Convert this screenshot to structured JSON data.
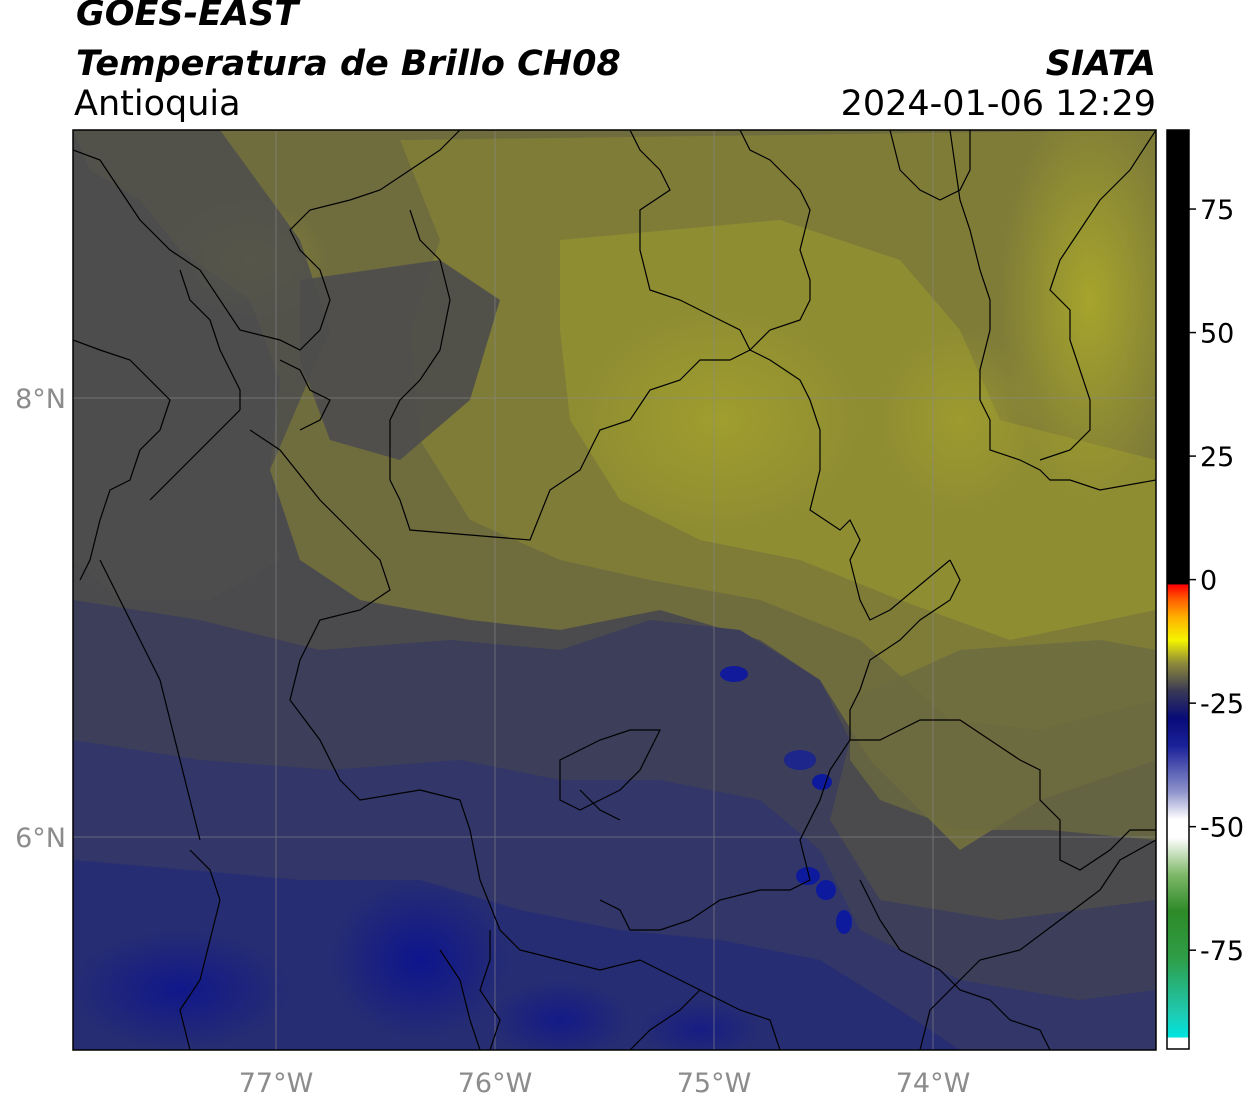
{
  "header": {
    "satellite": "GOES-EAST",
    "product": "Temperatura de Brillo CH08",
    "region": "Antioquia",
    "brand": "SIATA",
    "datetime": "2024-01-06 12:29"
  },
  "map": {
    "lon_ticks": [
      "77°W",
      "76°W",
      "75°W",
      "74°W"
    ],
    "lat_ticks": [
      "8°N",
      "6°N"
    ],
    "colors": {
      "warm_yellow": "#9e9d2a",
      "olive": "#7f7c3a",
      "gray": "#4d4d4d",
      "slate": "#3d3f5e",
      "navy": "#242a6e",
      "deep_navy": "#0d1480"
    }
  },
  "colorbar": {
    "ticks": [
      "75",
      "50",
      "25",
      "0",
      "-25",
      "-50",
      "-75"
    ],
    "tick_values": [
      75,
      50,
      25,
      0,
      -25,
      -50,
      -75
    ],
    "range": [
      -95,
      91
    ]
  }
}
